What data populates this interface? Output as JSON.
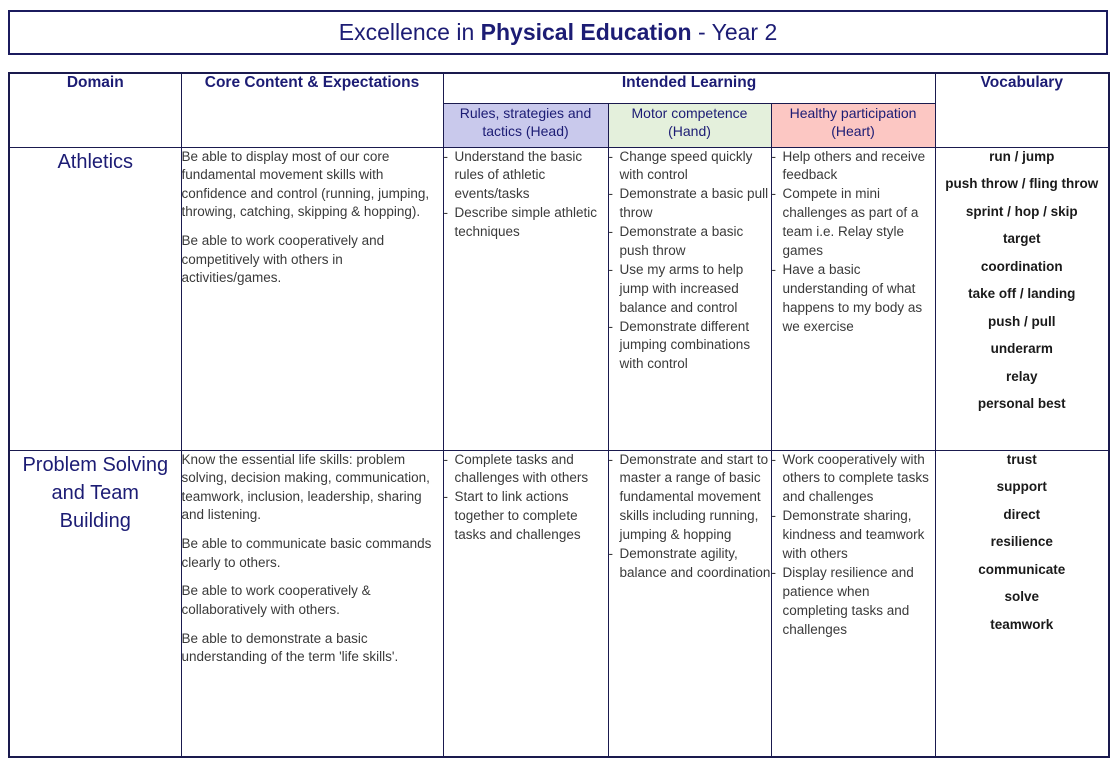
{
  "title": {
    "prefix": "Excellence in ",
    "emphasis": "Physical Education",
    "suffix": " - Year 2"
  },
  "colors": {
    "navy_text": "#1c1c74",
    "border_navy": "#1a1a4e",
    "head_bg": "#c9c9ec",
    "hand_bg": "#e4f0dc",
    "heart_bg": "#fcc7c3"
  },
  "table": {
    "headers": {
      "domain": "Domain",
      "core_content": "Core Content & Expectations",
      "intended_learning": "Intended Learning",
      "vocabulary": "Vocabulary",
      "sub_columns": [
        {
          "label": "Rules, strategies and tactics (Head)",
          "bg": "#c9c9ec"
        },
        {
          "label": "Motor competence (Hand)",
          "bg": "#e4f0dc"
        },
        {
          "label": "Healthy participation (Heart)",
          "bg": "#fcc7c3"
        }
      ]
    },
    "rows": [
      {
        "domain": "Athletics",
        "core_content": [
          "Be able to display most of our core fundamental movement skills with confidence and control (running, jumping, throwing, catching, skipping & hopping).",
          "Be able to work cooperatively and competitively with others in activities/games."
        ],
        "head": [
          "Understand the basic rules of athletic events/tasks",
          "Describe simple athletic techniques"
        ],
        "hand": [
          "Change speed quickly with control",
          "Demonstrate a basic pull throw",
          "Demonstrate a basic push throw",
          "Use my arms to help jump with increased balance and control",
          "Demonstrate different jumping combinations with control"
        ],
        "heart": [
          "Help others and receive feedback",
          "Compete in mini challenges as part of a team i.e. Relay style games",
          "Have a basic understanding of what happens to my body as we exercise"
        ],
        "vocabulary": [
          "run / jump",
          "push throw / fling throw",
          "sprint / hop / skip",
          "target",
          "coordination",
          "take off / landing",
          "push / pull",
          "underarm",
          "relay",
          "personal best"
        ]
      },
      {
        "domain": "Problem Solving\nand Team\nBuilding",
        "core_content": [
          "Know the essential life skills: problem solving, decision making, communication, teamwork, inclusion, leadership, sharing and listening.",
          "Be able to communicate basic commands clearly to others.",
          "Be able to work cooperatively & collaboratively with others.",
          "Be able to demonstrate a basic understanding of the term 'life skills'."
        ],
        "head": [
          "Complete tasks and challenges with others",
          "Start to link actions together to complete tasks and challenges"
        ],
        "hand": [
          "Demonstrate and start to master a range of basic fundamental movement skills including running, jumping & hopping",
          "Demonstrate agility, balance and coordination"
        ],
        "heart": [
          "Work cooperatively with others to complete tasks and challenges",
          "Demonstrate sharing, kindness and teamwork with others",
          "Display resilience and patience when completing tasks and challenges"
        ],
        "vocabulary": [
          "trust",
          "support",
          "direct",
          "resilience",
          "communicate",
          "solve",
          "teamwork"
        ]
      }
    ]
  }
}
